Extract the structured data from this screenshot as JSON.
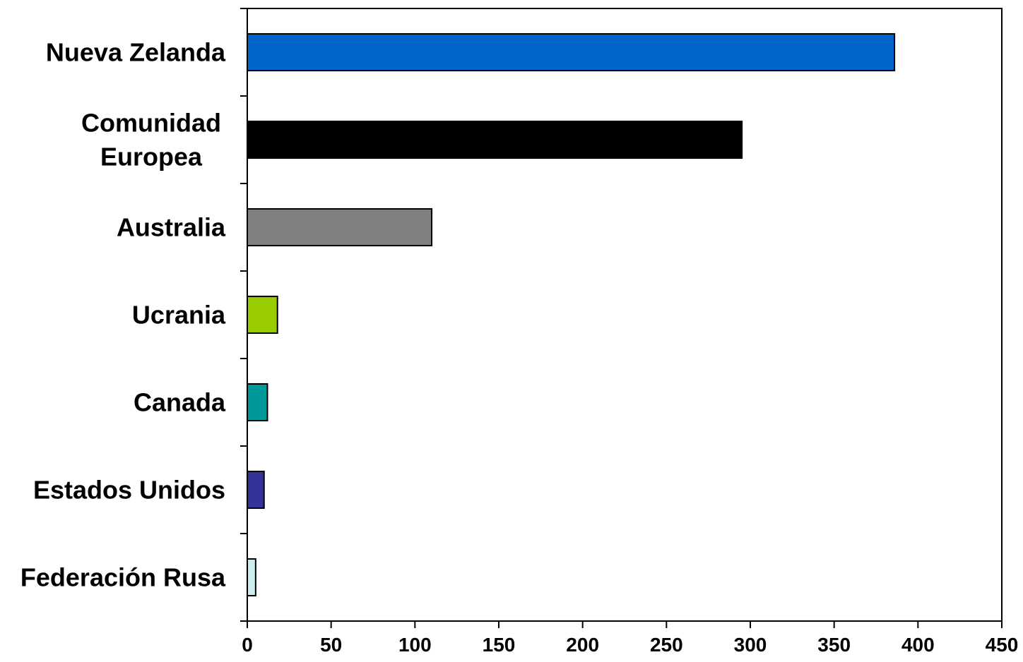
{
  "chart_data": {
    "type": "bar",
    "orientation": "horizontal",
    "categories": [
      [
        "Nueva Zelanda"
      ],
      [
        "Comunidad",
        "Europea"
      ],
      [
        "Australia"
      ],
      [
        "Ucrania"
      ],
      [
        "Canada"
      ],
      [
        "Estados Unidos"
      ],
      [
        "Federación Rusa"
      ]
    ],
    "values": [
      386,
      295,
      110,
      18,
      12,
      10,
      5
    ],
    "colors": [
      "#0066CC",
      "#000000",
      "#808080",
      "#99CC00",
      "#009999",
      "#333399",
      "#CCECEE"
    ],
    "xlim": [
      0,
      450
    ],
    "xticks": [
      0,
      50,
      100,
      150,
      200,
      250,
      300,
      350,
      400,
      450
    ],
    "title": "",
    "xlabel": "",
    "ylabel": "",
    "grid": false,
    "legend": "none"
  }
}
